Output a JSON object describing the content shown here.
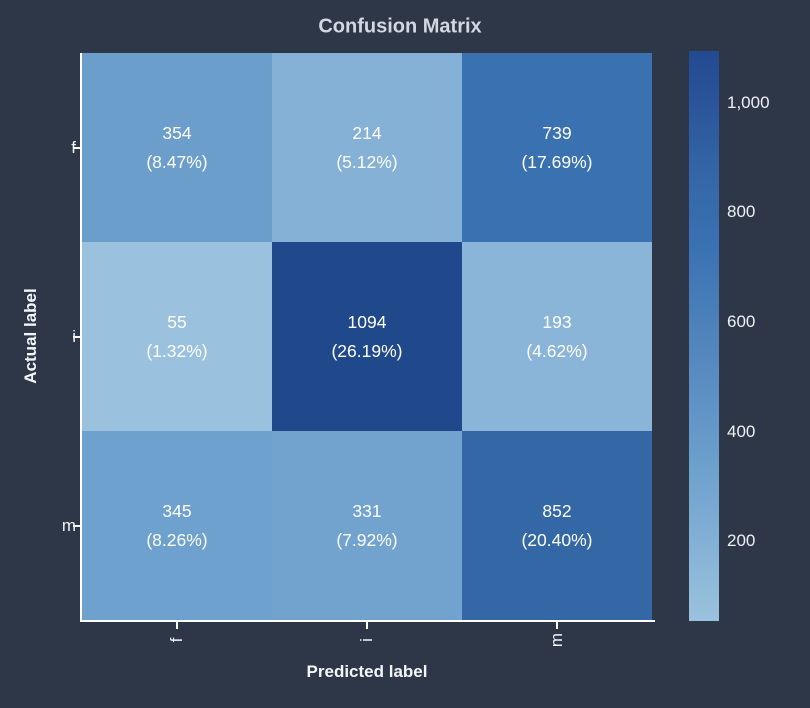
{
  "figure": {
    "background_color": "#2d3748"
  },
  "chart_data": {
    "type": "heatmap",
    "title": "Confusion Matrix",
    "xlabel": "Predicted label",
    "ylabel": "Actual label",
    "x_categories": [
      "f",
      "i",
      "m"
    ],
    "y_categories": [
      "f",
      "i",
      "m"
    ],
    "values": [
      [
        354,
        214,
        739
      ],
      [
        55,
        1094,
        193
      ],
      [
        345,
        331,
        852
      ]
    ],
    "count_labels": [
      [
        "354",
        "214",
        "739"
      ],
      [
        "55",
        "1094",
        "193"
      ],
      [
        "345",
        "331",
        "852"
      ]
    ],
    "percent_labels": [
      [
        "(8.47%)",
        "(5.12%)",
        "(17.69%)"
      ],
      [
        "(1.32%)",
        "(26.19%)",
        "(4.62%)"
      ],
      [
        "(8.26%)",
        "(7.92%)",
        "(20.40%)"
      ]
    ],
    "cell_colors": [
      [
        "#6c9ecc",
        "#84b1d5",
        "#3a71b0"
      ],
      [
        "#9ac2de",
        "#20498b",
        "#8ab5d8"
      ],
      [
        "#6ea1cd",
        "#71a3ce",
        "#3467a6"
      ]
    ],
    "cell_text_color": "#ffffff",
    "grid": false,
    "vmin": 55,
    "vmax": 1094,
    "colorbar": {
      "position": "right",
      "tick_labels": [
        "1,000",
        "800",
        "600",
        "400",
        "200"
      ],
      "tick_values": [
        1000,
        800,
        600,
        400,
        200
      ],
      "gradient_stops": [
        {
          "pos": 0.0,
          "color": "#9ac2de"
        },
        {
          "pos": 0.27,
          "color": "#6da0cd"
        },
        {
          "pos": 0.66,
          "color": "#3a71b0"
        },
        {
          "pos": 0.78,
          "color": "#3467a6"
        },
        {
          "pos": 1.0,
          "color": "#23498f"
        }
      ]
    }
  }
}
